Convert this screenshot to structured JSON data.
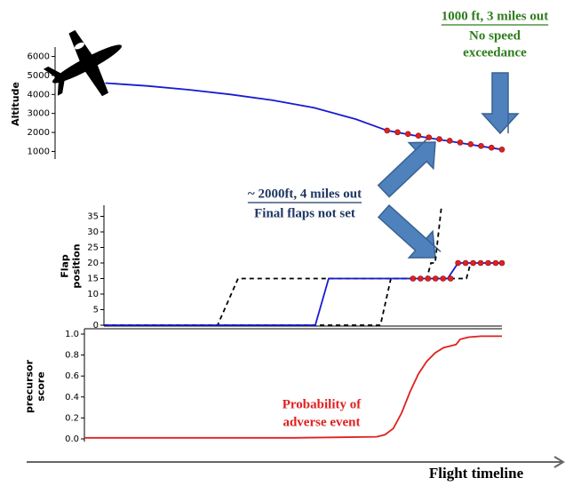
{
  "chart_data": [
    {
      "type": "line",
      "y_label": "Altitude",
      "xlim": [
        0,
        100
      ],
      "ylim": [
        600,
        6400
      ],
      "yticks": [
        1000,
        2000,
        3000,
        4000,
        5000,
        6000
      ],
      "series": [
        {
          "color": "#1a1ad0",
          "style": "solid",
          "markers": false,
          "x": [
            5,
            15,
            25,
            35,
            45,
            55,
            65,
            72.5,
            80,
            90,
            100
          ],
          "values": [
            4600,
            4450,
            4250,
            4000,
            3700,
            3300,
            2700,
            2100,
            1800,
            1450,
            1100
          ]
        },
        {
          "color": "#e02020",
          "style": "none",
          "markers": true,
          "x": [
            72.5,
            75,
            77.5,
            80,
            82.5,
            85,
            87.5,
            90,
            92.5,
            95,
            97.5,
            100
          ],
          "values": [
            2100,
            2010,
            1920,
            1830,
            1740,
            1650,
            1560,
            1470,
            1380,
            1290,
            1200,
            1100
          ]
        }
      ],
      "annotations": [
        {
          "lines": [
            "1000 ft, 3 miles out",
            "No speed",
            "exceedance"
          ]
        }
      ]
    },
    {
      "type": "line",
      "y_label": [
        "Flap",
        "position"
      ],
      "xlim": [
        0,
        100
      ],
      "ylim": [
        0,
        38
      ],
      "yticks": [
        0,
        5,
        10,
        15,
        20,
        25,
        30,
        35
      ],
      "series": [
        {
          "color": "#000000",
          "style": "dashed",
          "markers": false,
          "x": [
            4.7,
            31.9,
            36.8,
            82,
            83,
            84,
            85.5
          ],
          "values": [
            0,
            0,
            15,
            15,
            20,
            20,
            38
          ]
        },
        {
          "color": "#000000",
          "style": "dashed",
          "markers": false,
          "x": [
            4.7,
            70.9,
            73.4,
            91.5,
            92.5,
            100
          ],
          "values": [
            0,
            0,
            15,
            15,
            20,
            20
          ]
        },
        {
          "color": "#1a1ad0",
          "style": "solid",
          "markers": false,
          "x": [
            4.7,
            55.3,
            58.5,
            87,
            89.5,
            100
          ],
          "values": [
            0,
            0,
            15,
            15,
            20,
            20
          ]
        },
        {
          "color": "#e02020",
          "style": "none",
          "markers": true,
          "x": [
            78.7,
            80.5,
            82.3,
            84.1,
            85.9,
            87.7,
            89.5,
            91.3,
            93.1,
            94.9,
            96.7,
            98.5,
            100
          ],
          "values": [
            15,
            15,
            15,
            15,
            15,
            15,
            20,
            20,
            20,
            20,
            20,
            20,
            20
          ]
        }
      ],
      "annotations": [
        {
          "lines": [
            "~ 2000ft, 4 miles out",
            "Final flaps not set"
          ]
        }
      ]
    },
    {
      "type": "line",
      "y_label": [
        "precursor",
        "score"
      ],
      "xlim": [
        0,
        100
      ],
      "ylim": [
        0,
        1
      ],
      "yticks": [
        {
          "value": 0,
          "label": "0.0"
        },
        0.2,
        0.4,
        0.6,
        0.8,
        {
          "value": 1,
          "label": "1.0"
        }
      ],
      "series": [
        {
          "color": "#e02020",
          "style": "solid",
          "markers": false,
          "x": [
            0,
            50,
            70,
            72,
            74,
            76,
            78,
            80,
            82,
            84,
            86,
            88,
            89,
            90,
            92,
            95,
            100
          ],
          "values": [
            0.01,
            0.01,
            0.02,
            0.04,
            0.1,
            0.25,
            0.45,
            0.62,
            0.74,
            0.82,
            0.87,
            0.89,
            0.9,
            0.95,
            0.97,
            0.98,
            0.98
          ]
        }
      ],
      "annotations": [
        {
          "lines": [
            "Probability of",
            "adverse event"
          ]
        }
      ]
    }
  ],
  "timeline_label": "Flight timeline"
}
